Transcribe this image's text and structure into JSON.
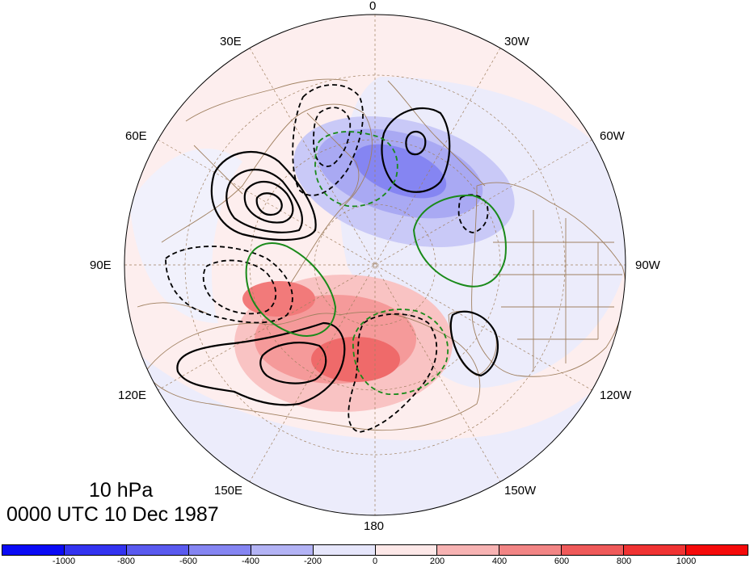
{
  "title": {
    "level": "10 hPa",
    "time": "0000 UTC 10 Dec 1987"
  },
  "longitude_labels": [
    {
      "id": "0",
      "text": "0"
    },
    {
      "id": "30w",
      "text": "30W"
    },
    {
      "id": "60w",
      "text": "60W"
    },
    {
      "id": "90w",
      "text": "90W"
    },
    {
      "id": "120w",
      "text": "120W"
    },
    {
      "id": "150w",
      "text": "150W"
    },
    {
      "id": "180",
      "text": "180"
    },
    {
      "id": "150e",
      "text": "150E"
    },
    {
      "id": "120e",
      "text": "120E"
    },
    {
      "id": "90e",
      "text": "90E"
    },
    {
      "id": "60e",
      "text": "60E"
    },
    {
      "id": "30e",
      "text": "30E"
    }
  ],
  "colorbar": {
    "colors": [
      "#0a0af5",
      "#3333f0",
      "#5a5aef",
      "#8585f2",
      "#b3b3f5",
      "#e6e6fb",
      "#fde8e8",
      "#f7b3b3",
      "#f28585",
      "#ef5a5a",
      "#f03333",
      "#f50a0a"
    ],
    "ticks": [
      "-1000",
      "-800",
      "-600",
      "-400",
      "-200",
      "0",
      "200",
      "400",
      "600",
      "800",
      "1000"
    ]
  },
  "colors": {
    "solid_contour": "#000000",
    "dashed_contour": "#000000",
    "green_contour": "#1a8a1a",
    "coastline": "#a08060",
    "gridline": "#a08060"
  }
}
